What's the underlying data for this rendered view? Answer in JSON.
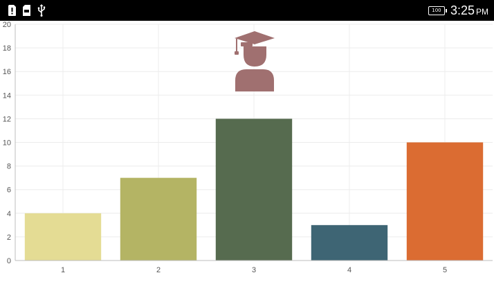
{
  "status_bar": {
    "battery_label": "100",
    "time": "3:25",
    "ampm": "PM",
    "icons": [
      "sim-alert-icon",
      "sd-card-icon",
      "usb-icon"
    ]
  },
  "chart_data": {
    "type": "bar",
    "categories": [
      "1",
      "2",
      "3",
      "4",
      "5"
    ],
    "values": [
      4,
      7,
      12,
      3,
      10
    ],
    "colors": [
      "#E4DC94",
      "#B4B464",
      "#566B4F",
      "#3E6574",
      "#DB6C32"
    ],
    "ylim": [
      0,
      20
    ],
    "yticks": [
      0,
      2,
      4,
      6,
      8,
      10,
      12,
      14,
      16,
      18,
      20
    ],
    "grid": true,
    "title": "",
    "xlabel": "",
    "ylabel": "",
    "icon": "graduate-student-icon",
    "icon_color": "#A07070"
  }
}
